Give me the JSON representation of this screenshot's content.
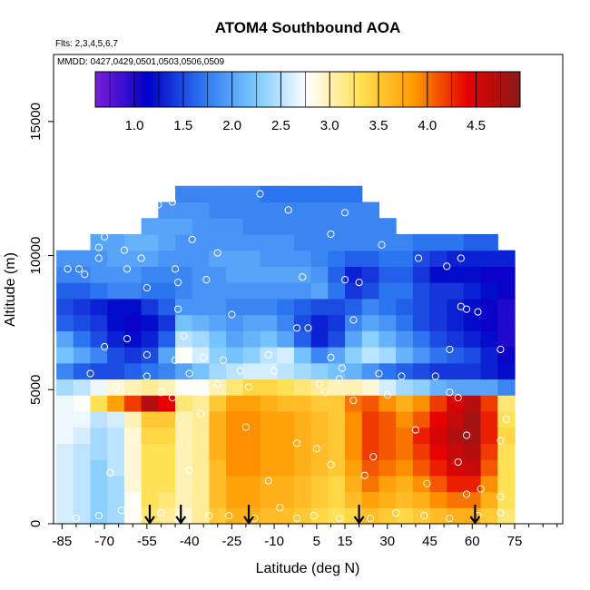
{
  "chart_data": {
    "type": "heatmap",
    "title": "ATOM4 Southbound AOA",
    "subtitle_flights": "Flts: 2,3,4,5,6,7",
    "subtitle_dates": "MMDD: 0427,0429,0501,0503,0506,0509",
    "xlabel": "Latitude (deg N)",
    "ylabel": "Altitude (m)",
    "xlim": [
      -88,
      92
    ],
    "ylim": [
      0,
      17500
    ],
    "x_ticks": [
      -85,
      -70,
      -55,
      -40,
      -25,
      -10,
      5,
      15,
      30,
      45,
      60,
      75
    ],
    "y_ticks": [
      0,
      5000,
      10000,
      15000
    ],
    "colorbar": {
      "min": 0.6,
      "max": 4.95,
      "ticks": [
        1.0,
        1.5,
        2.0,
        2.5,
        3.0,
        3.5,
        4.0,
        4.5
      ],
      "tick_labels": [
        "1.0",
        "1.5",
        "2.0",
        "2.5",
        "3.0",
        "3.5",
        "4.0",
        "4.5"
      ],
      "colors": [
        "#7a1fd8",
        "#0000c8",
        "#2a73f0",
        "#7ac8ff",
        "#ffffff",
        "#ffe050",
        "#ff9a00",
        "#e60000",
        "#8b1a1a"
      ]
    },
    "arrows_latitude": [
      -54,
      -43,
      -19,
      20,
      61
    ],
    "grid": false,
    "legend": "colorbar top",
    "lat_bins": [
      -84,
      -78,
      -72,
      -66,
      -60,
      -54,
      -48,
      -42,
      -36,
      -30,
      -24,
      -18,
      -12,
      -6,
      0,
      6,
      12,
      18,
      24,
      30,
      36,
      42,
      48,
      54,
      60,
      66,
      72
    ],
    "alt_bins": [
      300,
      900,
      1500,
      2100,
      2700,
      3300,
      3900,
      4500,
      5100,
      5700,
      6300,
      6900,
      7500,
      8100,
      8700,
      9300,
      9900,
      10500,
      11100,
      11700,
      12300
    ],
    "aoa_grid_years": [
      [
        2.6,
        2.5,
        2.3,
        2.4,
        2.8,
        3.2,
        3.1,
        2.9,
        3.1,
        3.5,
        3.7,
        3.7,
        3.6,
        3.6,
        3.5,
        3.4,
        3.3,
        3.4,
        3.6,
        3.5,
        3.4,
        3.5,
        3.6,
        3.7,
        3.7,
        3.5,
        3.2
      ],
      [
        2.6,
        2.5,
        2.3,
        2.4,
        2.8,
        3.3,
        3.2,
        3.0,
        3.1,
        3.6,
        3.8,
        3.8,
        3.7,
        3.7,
        3.6,
        3.5,
        3.4,
        3.6,
        3.8,
        3.7,
        3.6,
        3.7,
        3.9,
        4.0,
        4.0,
        3.7,
        3.3
      ],
      [
        2.6,
        2.5,
        2.3,
        2.4,
        2.9,
        3.3,
        3.3,
        3.0,
        3.1,
        3.6,
        3.8,
        3.8,
        3.7,
        3.7,
        3.6,
        3.5,
        3.4,
        3.7,
        4.0,
        3.8,
        3.7,
        3.9,
        4.1,
        4.3,
        4.3,
        3.9,
        3.3
      ],
      [
        2.6,
        2.5,
        2.3,
        2.5,
        2.9,
        3.3,
        3.3,
        3.0,
        3.1,
        3.6,
        3.9,
        3.9,
        3.8,
        3.8,
        3.7,
        3.6,
        3.5,
        3.8,
        4.1,
        4.0,
        3.9,
        4.1,
        4.3,
        4.5,
        4.6,
        4.1,
        3.3
      ],
      [
        2.6,
        2.5,
        2.4,
        2.5,
        2.9,
        3.3,
        3.3,
        3.0,
        3.1,
        3.7,
        3.9,
        3.9,
        3.8,
        3.8,
        3.7,
        3.6,
        3.5,
        3.9,
        4.2,
        4.1,
        4.0,
        4.2,
        4.4,
        4.6,
        4.7,
        4.2,
        3.3
      ],
      [
        2.7,
        2.6,
        2.4,
        2.5,
        2.9,
        3.4,
        3.4,
        3.0,
        3.1,
        3.7,
        3.9,
        3.9,
        3.8,
        3.8,
        3.7,
        3.6,
        3.5,
        3.9,
        4.2,
        4.1,
        4.0,
        4.3,
        4.5,
        4.7,
        4.8,
        4.3,
        3.4
      ],
      [
        2.7,
        2.7,
        2.5,
        2.6,
        3.0,
        3.5,
        3.5,
        3.0,
        3.1,
        3.7,
        3.9,
        3.9,
        3.8,
        3.8,
        3.7,
        3.6,
        3.5,
        3.9,
        4.2,
        4.1,
        3.9,
        4.1,
        4.4,
        4.6,
        4.8,
        4.3,
        3.3
      ],
      [
        2.7,
        2.8,
        3.3,
        3.8,
        4.2,
        4.7,
        4.4,
        3.2,
        3.1,
        3.5,
        3.8,
        3.8,
        3.7,
        3.6,
        3.6,
        3.5,
        3.5,
        4.0,
        4.1,
        3.9,
        3.7,
        3.9,
        4.2,
        4.5,
        4.7,
        4.2,
        3.2
      ],
      [
        2.4,
        2.5,
        2.7,
        2.9,
        3.0,
        3.1,
        3.0,
        2.8,
        2.8,
        3.0,
        3.2,
        3.4,
        3.4,
        3.3,
        3.2,
        3.1,
        3.0,
        3.0,
        2.9,
        2.6,
        2.4,
        2.3,
        2.1,
        2.0,
        2.0,
        2.0,
        1.8
      ],
      [
        1.8,
        1.6,
        1.5,
        1.5,
        1.6,
        1.7,
        1.8,
        2.0,
        2.2,
        2.4,
        2.5,
        2.6,
        2.6,
        2.5,
        2.4,
        2.3,
        2.2,
        2.1,
        1.9,
        1.7,
        1.6,
        1.5,
        1.4,
        1.4,
        1.4,
        1.3,
        1.2
      ],
      [
        2.2,
        2.0,
        1.8,
        1.5,
        1.4,
        1.5,
        2.0,
        2.8,
        2.6,
        2.3,
        2.2,
        2.3,
        2.5,
        2.6,
        2.2,
        1.8,
        2.0,
        2.3,
        2.5,
        2.4,
        2.1,
        1.9,
        1.7,
        1.6,
        1.5,
        1.3,
        1.1
      ],
      [
        2.0,
        1.7,
        1.5,
        1.3,
        1.2,
        1.3,
        1.6,
        2.5,
        2.4,
        2.2,
        2.0,
        2.1,
        2.2,
        2.0,
        1.6,
        1.3,
        1.5,
        2.0,
        2.3,
        2.1,
        1.9,
        1.7,
        1.5,
        1.4,
        1.3,
        1.2,
        1.0
      ],
      [
        1.6,
        1.5,
        1.4,
        1.2,
        1.1,
        1.2,
        1.4,
        2.2,
        2.1,
        2.0,
        1.9,
        2.0,
        2.0,
        1.8,
        1.5,
        1.3,
        1.4,
        1.8,
        2.0,
        1.9,
        1.7,
        1.5,
        1.4,
        1.3,
        1.2,
        1.1,
        1.0
      ],
      [
        1.5,
        1.4,
        1.3,
        1.2,
        1.2,
        1.4,
        1.6,
        1.9,
        1.9,
        1.9,
        1.8,
        1.8,
        1.8,
        1.7,
        1.6,
        1.5,
        1.5,
        1.6,
        1.8,
        1.7,
        1.6,
        1.5,
        1.4,
        1.3,
        1.2,
        1.1,
        1.0
      ],
      [
        1.6,
        1.6,
        1.7,
        1.8,
        1.8,
        1.7,
        1.7,
        1.8,
        1.9,
        1.9,
        1.9,
        1.9,
        1.9,
        1.9,
        1.9,
        2.0,
        1.7,
        1.4,
        1.5,
        1.7,
        1.7,
        1.5,
        1.4,
        1.4,
        1.3,
        1.2,
        1.1
      ],
      [
        1.8,
        1.8,
        1.9,
        1.9,
        1.9,
        1.8,
        1.8,
        1.8,
        1.9,
        1.9,
        2.0,
        2.0,
        2.0,
        2.0,
        2.0,
        1.9,
        1.6,
        1.3,
        1.4,
        1.6,
        1.6,
        1.4,
        1.2,
        1.2,
        1.2,
        1.1,
        1.1
      ],
      [
        1.9,
        1.9,
        1.9,
        2.0,
        2.0,
        2.0,
        1.9,
        1.9,
        1.9,
        2.0,
        2.0,
        2.0,
        1.9,
        1.9,
        1.9,
        1.8,
        1.7,
        1.6,
        1.6,
        1.7,
        1.7,
        1.5,
        1.4,
        1.3,
        1.3,
        1.3,
        1.3
      ],
      [
        null,
        null,
        2.0,
        2.0,
        2.1,
        2.1,
        2.0,
        1.9,
        1.9,
        1.9,
        1.9,
        1.9,
        1.9,
        1.9,
        1.8,
        1.8,
        1.8,
        1.8,
        1.8,
        1.8,
        1.8,
        1.7,
        1.7,
        1.7,
        1.6,
        1.6,
        null
      ],
      [
        null,
        null,
        null,
        null,
        null,
        2.0,
        2.0,
        2.0,
        1.9,
        1.9,
        1.9,
        1.8,
        1.8,
        1.8,
        1.8,
        1.8,
        1.8,
        1.8,
        1.8,
        1.8,
        null,
        null,
        null,
        null,
        null,
        null,
        null
      ],
      [
        null,
        null,
        null,
        null,
        null,
        null,
        1.9,
        1.9,
        1.9,
        1.8,
        1.8,
        1.8,
        1.8,
        1.8,
        1.8,
        1.8,
        1.8,
        1.8,
        1.8,
        null,
        null,
        null,
        null,
        null,
        null,
        null,
        null
      ],
      [
        null,
        null,
        null,
        null,
        null,
        null,
        null,
        1.8,
        1.8,
        1.8,
        1.8,
        1.8,
        1.7,
        1.7,
        1.7,
        1.7,
        1.7,
        1.7,
        null,
        null,
        null,
        null,
        null,
        null,
        null,
        null,
        null
      ]
    ],
    "sample_points": [
      [
        -83,
        9500
      ],
      [
        -77,
        9300
      ],
      [
        -72,
        10300
      ],
      [
        -72,
        9900
      ],
      [
        -70,
        10700
      ],
      [
        -66,
        11500
      ],
      [
        -63,
        10200
      ],
      [
        -60,
        11700
      ],
      [
        -57,
        9900
      ],
      [
        -51,
        11900
      ],
      [
        -46,
        12000
      ],
      [
        -39,
        10600
      ],
      [
        -30,
        10100
      ],
      [
        -15,
        12300
      ],
      [
        -5,
        11700
      ],
      [
        10,
        10800
      ],
      [
        15,
        11600
      ],
      [
        28,
        10400
      ],
      [
        35,
        11700
      ],
      [
        41,
        9900
      ],
      [
        51,
        9600
      ],
      [
        56,
        9900
      ],
      [
        65,
        11300
      ],
      [
        -79,
        9500
      ],
      [
        -62,
        9500
      ],
      [
        -55,
        8800
      ],
      [
        -45,
        9500
      ],
      [
        -44,
        9000
      ],
      [
        -34,
        9100
      ],
      [
        0,
        9200
      ],
      [
        15,
        9100
      ],
      [
        20,
        9000
      ],
      [
        56,
        8100
      ],
      [
        58,
        8000
      ],
      [
        62,
        7900
      ],
      [
        -44,
        8000
      ],
      [
        -42,
        7000
      ],
      [
        -25,
        7800
      ],
      [
        -2,
        7300
      ],
      [
        2,
        7300
      ],
      [
        18,
        7600
      ],
      [
        -70,
        6600
      ],
      [
        -62,
        6900
      ],
      [
        -55,
        6300
      ],
      [
        -45,
        6100
      ],
      [
        -35,
        6200
      ],
      [
        -28,
        6100
      ],
      [
        -12,
        6300
      ],
      [
        10,
        6200
      ],
      [
        14,
        5800
      ],
      [
        52,
        6500
      ],
      [
        70,
        6500
      ],
      [
        -75,
        5600
      ],
      [
        -55,
        5500
      ],
      [
        -40,
        5600
      ],
      [
        -22,
        5700
      ],
      [
        -10,
        5700
      ],
      [
        6,
        5200
      ],
      [
        13,
        5400
      ],
      [
        27,
        5600
      ],
      [
        35,
        5500
      ],
      [
        47,
        5500
      ],
      [
        52,
        4900
      ],
      [
        -66,
        5100
      ],
      [
        -50,
        4900
      ],
      [
        -46,
        4700
      ],
      [
        -30,
        5200
      ],
      [
        -19,
        5100
      ],
      [
        8,
        4900
      ],
      [
        18,
        4600
      ],
      [
        30,
        4800
      ],
      [
        55,
        4700
      ],
      [
        58,
        3300
      ],
      [
        72,
        3900
      ],
      [
        70,
        3100
      ],
      [
        -36,
        4100
      ],
      [
        -20,
        3600
      ],
      [
        -2,
        3000
      ],
      [
        5,
        2800
      ],
      [
        25,
        2500
      ],
      [
        40,
        3500
      ],
      [
        55,
        2300
      ],
      [
        63,
        1300
      ],
      [
        70,
        1000
      ],
      [
        -68,
        1900
      ],
      [
        -40,
        2000
      ],
      [
        -12,
        1600
      ],
      [
        10,
        2200
      ],
      [
        22,
        1800
      ],
      [
        44,
        1500
      ],
      [
        58,
        1100
      ],
      [
        -80,
        200
      ],
      [
        -72,
        300
      ],
      [
        -64,
        500
      ],
      [
        -58,
        200
      ],
      [
        -50,
        400
      ],
      [
        -44,
        200
      ],
      [
        -33,
        300
      ],
      [
        -26,
        300
      ],
      [
        -17,
        200
      ],
      [
        -8,
        600
      ],
      [
        -2,
        200
      ],
      [
        4,
        300
      ],
      [
        13,
        200
      ],
      [
        24,
        200
      ],
      [
        33,
        400
      ],
      [
        43,
        300
      ],
      [
        52,
        200
      ],
      [
        62,
        300
      ],
      [
        70,
        400
      ]
    ]
  }
}
